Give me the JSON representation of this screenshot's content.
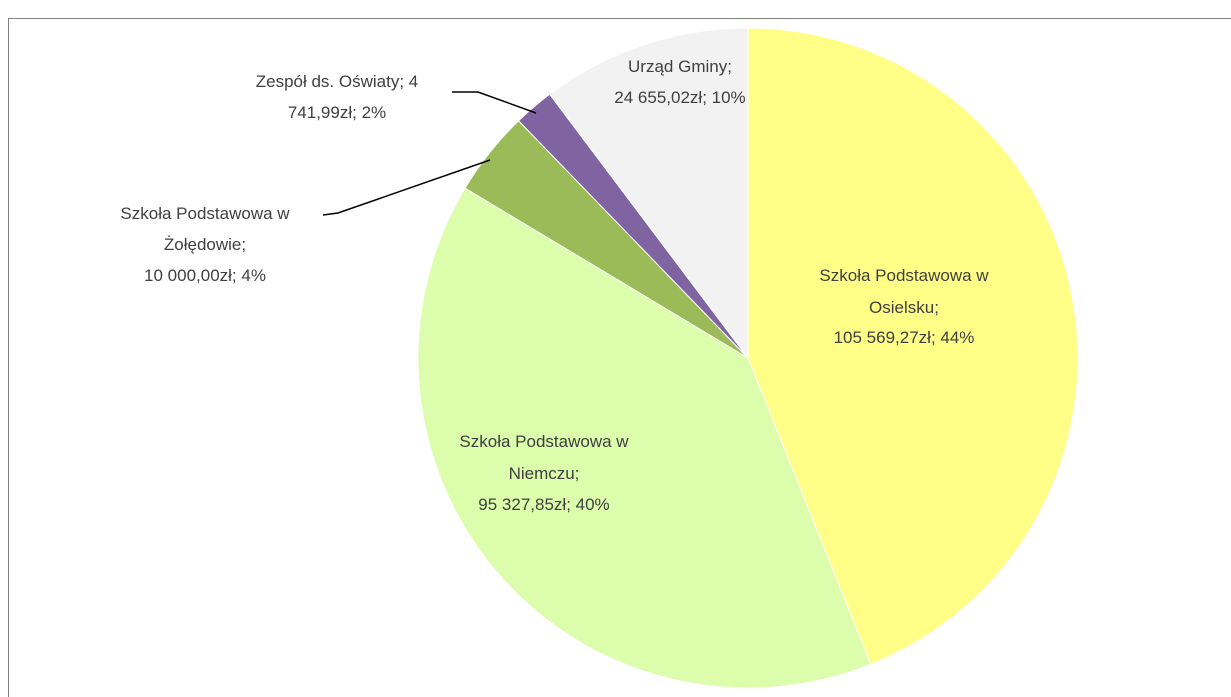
{
  "chart_data": {
    "type": "pie",
    "values": [
      105569.27,
      95327.85,
      10000.0,
      4741.99,
      24655.02
    ],
    "value_labels": [
      [
        "Szkoła Podstawowa w",
        "Osielsku;",
        "105 569,27zł; 44%"
      ],
      [
        "Szkoła Podstawowa w",
        "Niemczu;",
        "95 327,85zł; 40%"
      ],
      [
        "Szkoła Podstawowa w",
        "Żołędowie;",
        "10 000,00zł; 4%"
      ],
      [
        "Zespół ds. Oświaty; 4",
        "741,99zł; 2%"
      ],
      [
        "Urząd Gminy;",
        "24 655,02zł; 10%"
      ]
    ],
    "colors": [
      "#ffff88",
      "#dcfdab",
      "#9bbb59",
      "#8064a2",
      "#f2f2f2"
    ],
    "start_angle": 0,
    "direction": "clockwise"
  }
}
